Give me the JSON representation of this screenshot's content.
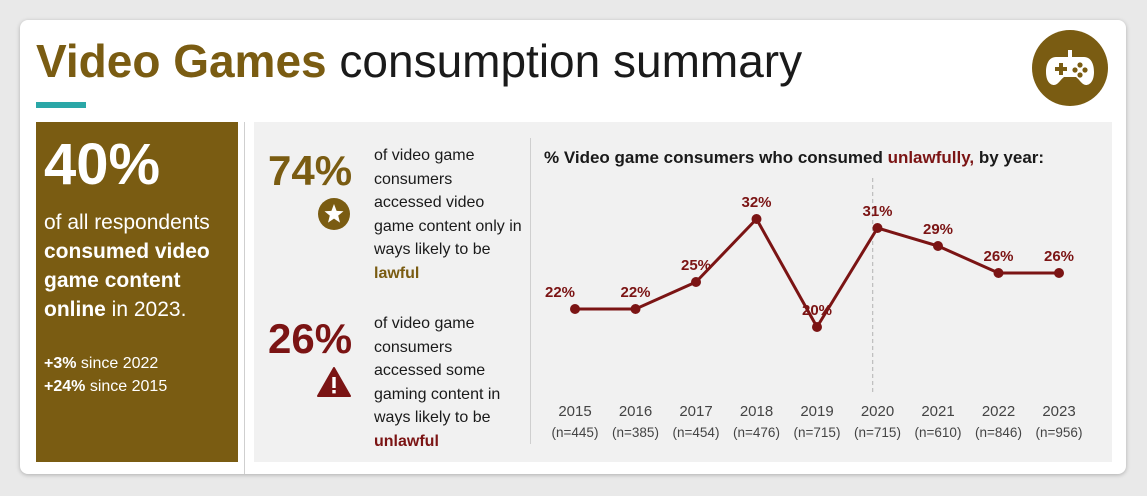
{
  "header": {
    "title_accent": "Video Games",
    "title_rest": " consumption summary",
    "logo_icon": "gamepad-icon"
  },
  "left_panel": {
    "big_stat": "40%",
    "text_1": "of all respondents ",
    "text_bold": "consumed video game content online",
    "text_2": " in 2023.",
    "change_1_value": "+3%",
    "change_1_label": " since 2022",
    "change_2_value": "+24%",
    "change_2_label": " since 2015"
  },
  "stats": {
    "lawful": {
      "percent": "74%",
      "text": "of video game consumers accessed video game content only in ways likely to be ",
      "highlight": "lawful",
      "icon": "star-badge-icon",
      "color": "#7a5c12"
    },
    "unlawful": {
      "percent": "26%",
      "text": "of video game consumers accessed some gaming content in ways likely to be ",
      "highlight": "unlawful",
      "icon": "warning-icon",
      "color": "#7b1414"
    }
  },
  "chart_data": {
    "type": "line",
    "title_prefix": "% Video game consumers who consumed ",
    "title_highlight": "unlawfully,",
    "title_suffix": " by year:",
    "categories": [
      "2015",
      "2016",
      "2017",
      "2018",
      "2019",
      "2020",
      "2021",
      "2022",
      "2023"
    ],
    "sample_sizes": [
      "(n=445)",
      "(n=385)",
      "(n=454)",
      "(n=476)",
      "(n=715)",
      "(n=715)",
      "(n=610)",
      "(n=846)",
      "(n=956)"
    ],
    "values": [
      22,
      22,
      25,
      32,
      20,
      31,
      29,
      26,
      26
    ],
    "data_labels": [
      "22%",
      "22%",
      "25%",
      "32%",
      "20%",
      "31%",
      "29%",
      "26%",
      "26%"
    ],
    "ylim": [
      15,
      35
    ],
    "grid": false,
    "marker_line_after": "2019",
    "line_color": "#7b1414"
  }
}
